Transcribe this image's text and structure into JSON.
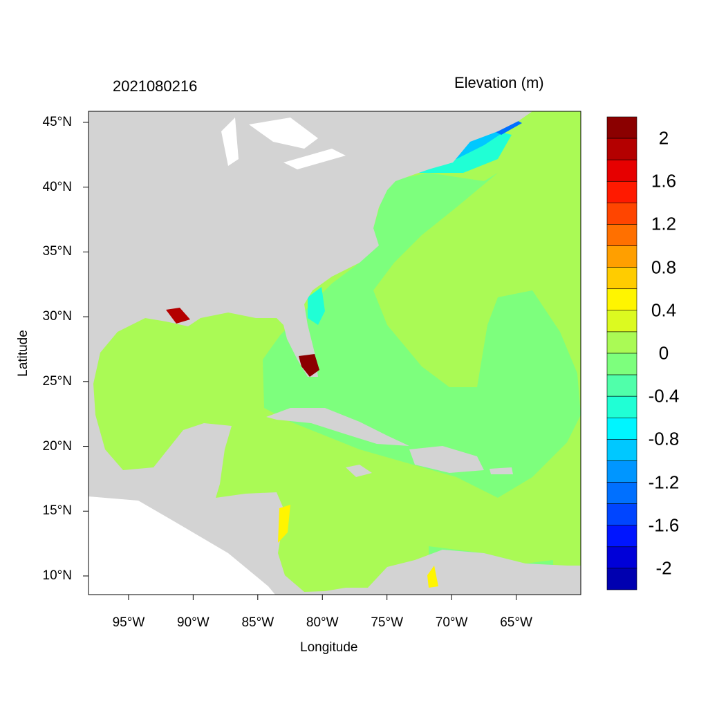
{
  "header": {
    "timestamp": "2021080216",
    "variable": "Elevation (m)"
  },
  "chart_data": {
    "type": "heatmap",
    "title_left": "2021080216",
    "title_right": "Elevation (m)",
    "xlabel": "Longitude",
    "ylabel": "Latitude",
    "xlim": [
      -98.1,
      -60.0
    ],
    "ylim": [
      8.56,
      45.85
    ],
    "x_ticks": [
      -95,
      -90,
      -85,
      -80,
      -75,
      -70,
      -65
    ],
    "x_tick_labels": [
      "95°W",
      "90°W",
      "85°W",
      "80°W",
      "75°W",
      "70°W",
      "65°W"
    ],
    "y_ticks": [
      45,
      40,
      35,
      30,
      25,
      20,
      15,
      10
    ],
    "y_tick_labels": [
      "45°N",
      "40°N",
      "35°N",
      "30°N",
      "25°N",
      "20°N",
      "15°N",
      "10°N"
    ],
    "colorbar": {
      "levels": [
        2.2,
        2.0,
        1.8,
        1.6,
        1.4,
        1.2,
        1.0,
        0.8,
        0.6,
        0.4,
        0.2,
        0,
        -0.2,
        -0.4,
        -0.6,
        -0.8,
        -1.0,
        -1.2,
        -1.4,
        -1.6,
        -1.8,
        -2.0,
        -2.2
      ],
      "colors": [
        "#8b0000",
        "#b40000",
        "#e60000",
        "#ff1a00",
        "#ff4500",
        "#ff7000",
        "#ff9f00",
        "#ffcc00",
        "#fff500",
        "#dcfa20",
        "#aafa55",
        "#7dff7d",
        "#50ffaa",
        "#20ffd5",
        "#00f5ff",
        "#00c8ff",
        "#0096ff",
        "#0070ff",
        "#0045ff",
        "#0015ff",
        "#0000d8",
        "#0000b0"
      ],
      "labeled_values": [
        2,
        1.6,
        1.2,
        0.8,
        0.4,
        0,
        -0.4,
        -0.8,
        -1.2,
        -1.6,
        -2
      ],
      "labels": [
        "2",
        "1.6",
        "1.2",
        "0.8",
        "0.4",
        "0",
        "-0.4",
        "-0.8",
        "-1.2",
        "-1.6",
        "-2"
      ]
    },
    "colors": {
      "land": "#d3d3d3",
      "no_data": "#ffffff"
    }
  }
}
